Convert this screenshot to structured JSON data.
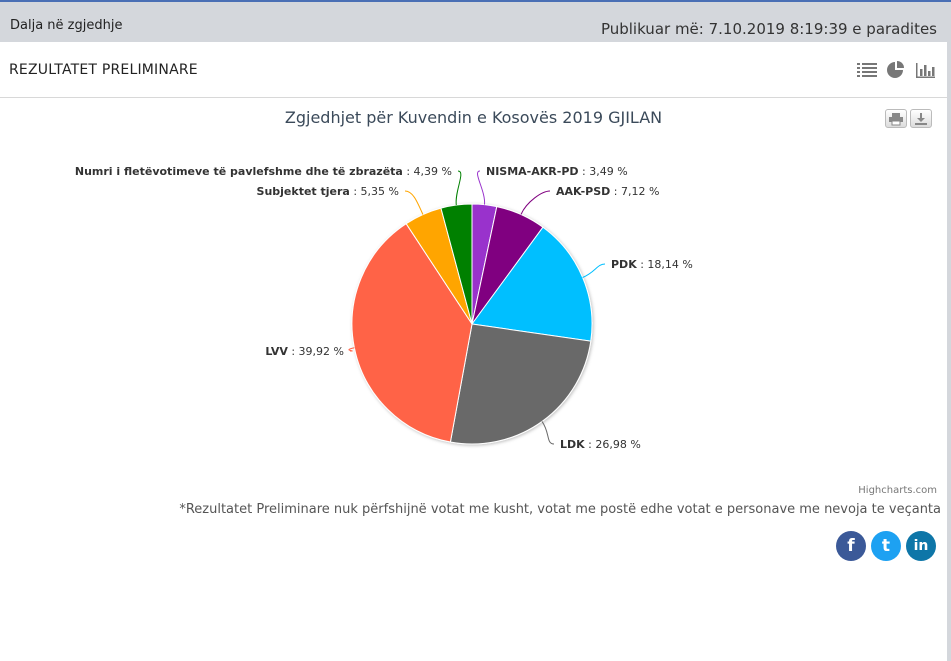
{
  "topbar": {
    "back_link": "Dalja në zgjedhje",
    "published": "Publikuar më: 7.10.2019 8:19:39 e paradites"
  },
  "section": {
    "title": "REZULTATET PRELIMINARE"
  },
  "view_icons": [
    "list-view-icon",
    "pie-view-icon",
    "bar-view-icon"
  ],
  "chart_data": {
    "type": "pie",
    "title": "Zgjedhjet për Kuvendin e Kosovës 2019 GJILAN",
    "unit": "%",
    "slices": [
      {
        "name": "NISMA-AKR-PD",
        "value": 3.49,
        "label": "3,49 %",
        "color": "#9933cc"
      },
      {
        "name": "AAK-PSD",
        "value": 7.12,
        "label": "7,12 %",
        "color": "#800080"
      },
      {
        "name": "PDK",
        "value": 18.14,
        "label": "18,14 %",
        "color": "#00bfff"
      },
      {
        "name": "LDK",
        "value": 26.98,
        "label": "26,98 %",
        "color": "#696969"
      },
      {
        "name": "LVV",
        "value": 39.92,
        "label": "39,92 %",
        "color": "#ff6347"
      },
      {
        "name": "Subjektet tjera",
        "value": 5.35,
        "label": "5,35 %",
        "color": "#ffa500"
      },
      {
        "name": "Numri i fletëvotimeve të pavlefshme dhe të zbrazëta",
        "value": 4.39,
        "label": "4,39 %",
        "color": "#008000"
      }
    ]
  },
  "credit": "Highcharts.com",
  "footnote": "*Rezultatet Preliminare nuk përfshijnë votat me kusht, votat me postë edhe votat e personave me nevoja te veçanta",
  "social": [
    {
      "name": "facebook",
      "glyph": "f",
      "color": "#3b5998"
    },
    {
      "name": "twitter",
      "glyph": "t",
      "color": "#1da1f2"
    },
    {
      "name": "linkedin",
      "glyph": "in",
      "color": "#0e76a8"
    }
  ]
}
